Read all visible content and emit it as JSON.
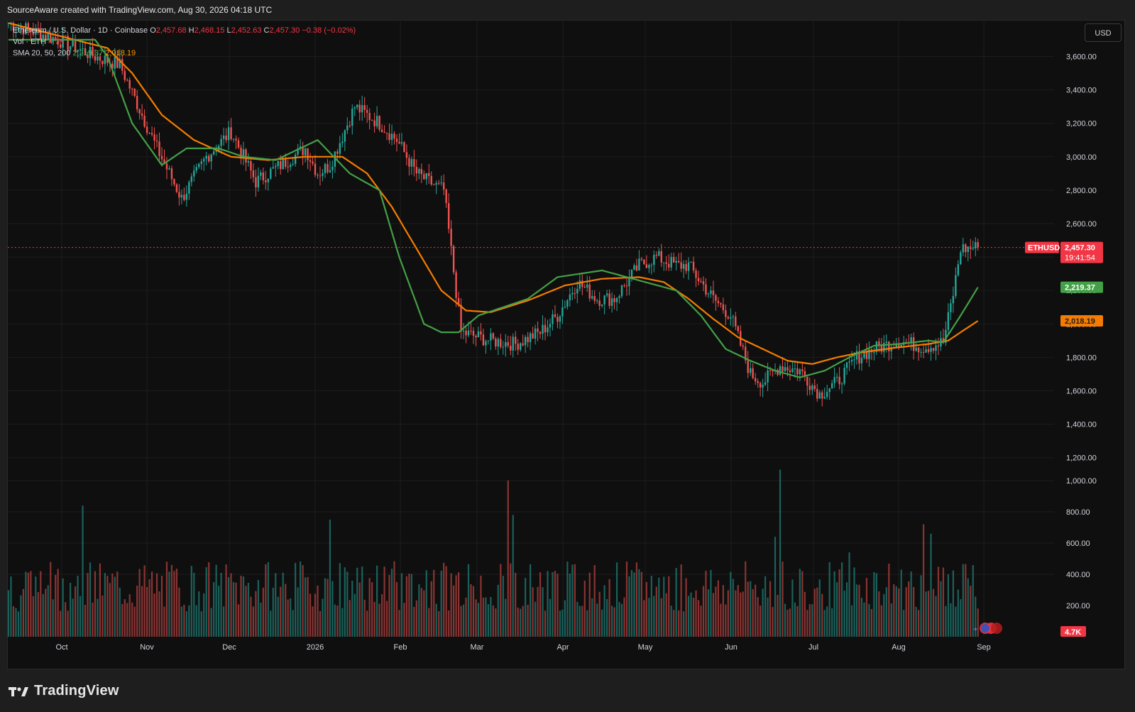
{
  "header": {
    "credit": "SourceAware created with TradingView.com, Aug 30, 2026 04:18 UTC"
  },
  "legend": {
    "symbol": "Ethereum / U.S. Dollar · 1D · Coinbase",
    "o_label": "O",
    "o_value": "2,457.68",
    "h_label": "H",
    "h_value": "2,468.15",
    "l_label": "L",
    "l_value": "2,452.63",
    "c_label": "C",
    "c_value": "2,457.30",
    "change": "−0.38 (−0.02%)",
    "vol_label": "Vol · ETH",
    "vol_value": "4.7K",
    "sma_label": "SMA 20, 50, 200",
    "sma20_value": "2,219.37",
    "sma50_value": "2,018.19"
  },
  "currency_button": "USD",
  "price_axis": {
    "ticks": [
      "3,600.00",
      "3,400.00",
      "3,200.00",
      "3,000.00",
      "2,800.00",
      "2,600.00",
      "2,400.00",
      "2,200.00",
      "2,000.00",
      "1,800.00",
      "1,600.00",
      "1,400.00",
      "1,200.00",
      "1,000.00",
      "800.00",
      "600.00",
      "400.00",
      "200.00"
    ],
    "symbol_tag": "ETHUSD",
    "last_price": "2,457.30",
    "countdown": "19:41:54",
    "sma20_tag": "2,219.37",
    "sma50_tag": "2,018.19",
    "volume_tag": "4.7K"
  },
  "time_axis": {
    "labels": [
      "Oct",
      "Nov",
      "Dec",
      "2026",
      "Feb",
      "Mar",
      "Apr",
      "May",
      "Jun",
      "Jul",
      "Aug",
      "Sep"
    ]
  },
  "brand": {
    "name": "TradingView"
  },
  "colors": {
    "up": "#26a69a",
    "down": "#ef5350",
    "sma20": "#43a047",
    "sma50": "#f57c00",
    "last_price": "#f23645",
    "background": "#0f0f0f",
    "grid": "#1c1c1c"
  },
  "chart_data": {
    "type": "candlestick",
    "title": "Ethereum / U.S. Dollar · 1D · Coinbase",
    "ylim": [
      1200,
      3700
    ],
    "y_ticks": [
      3600,
      3400,
      3200,
      3000,
      2800,
      2600,
      2400,
      2200,
      2000,
      1800,
      1600,
      1400,
      1200
    ],
    "x_labels": [
      "Oct",
      "Nov",
      "Dec",
      "2026",
      "Feb",
      "Mar",
      "Apr",
      "May",
      "Jun",
      "Jul",
      "Aug",
      "Sep"
    ],
    "last_close": 2457.3,
    "grid": true,
    "close_keypoints": [
      [
        0,
        3800
      ],
      [
        20,
        3700
      ],
      [
        35,
        3600
      ],
      [
        45,
        3550
      ],
      [
        60,
        3050
      ],
      [
        70,
        2750
      ],
      [
        80,
        3000
      ],
      [
        90,
        3150
      ],
      [
        100,
        2850
      ],
      [
        110,
        2950
      ],
      [
        120,
        3050
      ],
      [
        125,
        2900
      ],
      [
        130,
        2950
      ],
      [
        140,
        3300
      ],
      [
        150,
        3200
      ],
      [
        157,
        3100
      ],
      [
        165,
        2900
      ],
      [
        170,
        2850
      ],
      [
        176,
        2800
      ],
      [
        183,
        1950
      ],
      [
        195,
        1900
      ],
      [
        205,
        1880
      ],
      [
        215,
        1950
      ],
      [
        222,
        2050
      ],
      [
        230,
        2250
      ],
      [
        238,
        2150
      ],
      [
        245,
        2150
      ],
      [
        255,
        2350
      ],
      [
        262,
        2400
      ],
      [
        270,
        2350
      ],
      [
        275,
        2350
      ],
      [
        285,
        2150
      ],
      [
        292,
        2050
      ],
      [
        300,
        1700
      ],
      [
        305,
        1650
      ],
      [
        312,
        1750
      ],
      [
        320,
        1720
      ],
      [
        328,
        1580
      ],
      [
        335,
        1650
      ],
      [
        343,
        1800
      ],
      [
        350,
        1850
      ],
      [
        360,
        1900
      ],
      [
        370,
        1860
      ],
      [
        378,
        1890
      ],
      [
        382,
        2180
      ],
      [
        385,
        2450
      ],
      [
        392,
        2457
      ]
    ],
    "sma20_keypoints": [
      [
        0,
        3700
      ],
      [
        35,
        3700
      ],
      [
        40,
        3600
      ],
      [
        50,
        3200
      ],
      [
        62,
        2950
      ],
      [
        72,
        3050
      ],
      [
        85,
        3050
      ],
      [
        95,
        3000
      ],
      [
        108,
        2980
      ],
      [
        125,
        3100
      ],
      [
        138,
        2900
      ],
      [
        150,
        2800
      ],
      [
        158,
        2400
      ],
      [
        168,
        2000
      ],
      [
        175,
        1950
      ],
      [
        182,
        1950
      ],
      [
        190,
        2050
      ],
      [
        200,
        2100
      ],
      [
        210,
        2150
      ],
      [
        222,
        2280
      ],
      [
        240,
        2320
      ],
      [
        255,
        2260
      ],
      [
        270,
        2200
      ],
      [
        280,
        2050
      ],
      [
        290,
        1850
      ],
      [
        300,
        1780
      ],
      [
        310,
        1720
      ],
      [
        320,
        1680
      ],
      [
        330,
        1720
      ],
      [
        340,
        1800
      ],
      [
        350,
        1870
      ],
      [
        360,
        1880
      ],
      [
        372,
        1900
      ],
      [
        378,
        1890
      ],
      [
        385,
        2050
      ],
      [
        392,
        2219
      ]
    ],
    "sma50_keypoints": [
      [
        0,
        3800
      ],
      [
        40,
        3650
      ],
      [
        50,
        3500
      ],
      [
        62,
        3250
      ],
      [
        75,
        3100
      ],
      [
        90,
        3000
      ],
      [
        105,
        2980
      ],
      [
        120,
        3000
      ],
      [
        135,
        3000
      ],
      [
        145,
        2900
      ],
      [
        155,
        2700
      ],
      [
        165,
        2450
      ],
      [
        175,
        2200
      ],
      [
        185,
        2080
      ],
      [
        195,
        2070
      ],
      [
        210,
        2140
      ],
      [
        225,
        2230
      ],
      [
        240,
        2270
      ],
      [
        255,
        2280
      ],
      [
        265,
        2250
      ],
      [
        275,
        2150
      ],
      [
        285,
        2030
      ],
      [
        295,
        1920
      ],
      [
        305,
        1850
      ],
      [
        315,
        1780
      ],
      [
        325,
        1760
      ],
      [
        335,
        1800
      ],
      [
        345,
        1830
      ],
      [
        360,
        1860
      ],
      [
        372,
        1880
      ],
      [
        380,
        1900
      ],
      [
        386,
        1960
      ],
      [
        392,
        2018
      ]
    ],
    "volume": {
      "ylim": [
        0,
        1100
      ],
      "spikes": [
        [
          30,
          840
        ],
        [
          130,
          750
        ],
        [
          202,
          1000
        ],
        [
          204,
          780
        ],
        [
          312,
          1070
        ],
        [
          310,
          640
        ],
        [
          340,
          540
        ],
        [
          370,
          720
        ],
        [
          373,
          660
        ]
      ],
      "baseline": 360
    }
  }
}
